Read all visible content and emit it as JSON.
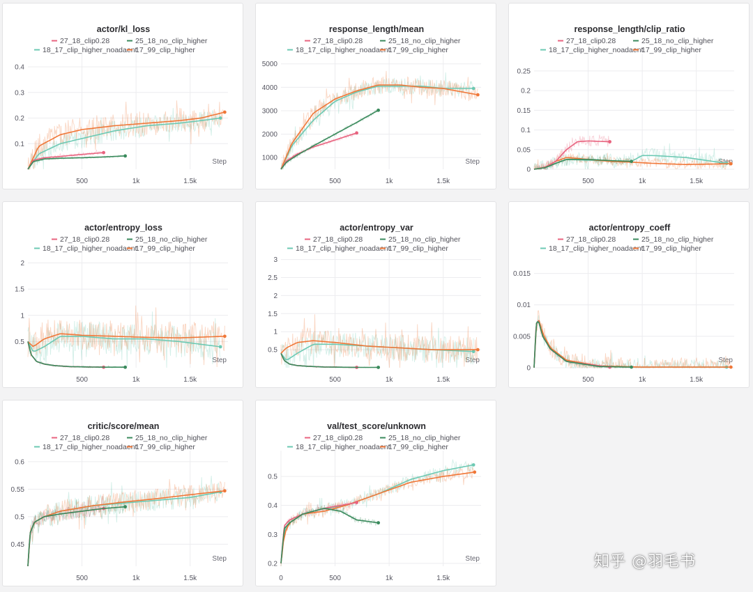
{
  "legend": {
    "series": [
      {
        "name": "27_18_clip0.28",
        "color": "#e8637f"
      },
      {
        "name": "25_18_no_clip_higher",
        "color": "#3a8a5c"
      },
      {
        "name": "18_17_clip_higher_noadaent",
        "color": "#6cc9b3"
      },
      {
        "name": "17_99_clip_higher",
        "color": "#f07738"
      }
    ]
  },
  "step_label": "Step",
  "watermark": "知乎 @羽毛书",
  "chart_data": [
    {
      "type": "line",
      "title": "actor/kl_loss",
      "xlim": [
        0,
        1850
      ],
      "ylim": [
        0,
        0.43
      ],
      "xticks": [
        500,
        1000,
        1500
      ],
      "xtick_labels": [
        "500",
        "1k",
        "1.5k"
      ],
      "yticks": [
        0.1,
        0.2,
        0.3,
        0.4
      ],
      "ytick_labels": [
        "0.1",
        "0.2",
        "0.3",
        "0.4"
      ],
      "noise": [
        0.006,
        0.004,
        0.04,
        0.05
      ],
      "series": [
        {
          "name": "27_18_clip0.28",
          "x": [
            0,
            50,
            150,
            300,
            500,
            700
          ],
          "y": [
            0,
            0.035,
            0.045,
            0.05,
            0.058,
            0.065
          ]
        },
        {
          "name": "25_18_no_clip_higher",
          "x": [
            0,
            50,
            150,
            300,
            500,
            700,
            900
          ],
          "y": [
            0,
            0.03,
            0.04,
            0.043,
            0.045,
            0.048,
            0.052
          ]
        },
        {
          "name": "18_17_clip_higher_noadaent",
          "x": [
            0,
            100,
            300,
            500,
            800,
            1100,
            1400,
            1600,
            1780
          ],
          "y": [
            0,
            0.06,
            0.1,
            0.12,
            0.15,
            0.17,
            0.18,
            0.19,
            0.2
          ]
        },
        {
          "name": "17_99_clip_higher",
          "x": [
            0,
            100,
            300,
            500,
            800,
            1100,
            1400,
            1600,
            1820
          ],
          "y": [
            0,
            0.09,
            0.135,
            0.155,
            0.17,
            0.18,
            0.19,
            0.2,
            0.223
          ]
        }
      ]
    },
    {
      "type": "line",
      "title": "response_length/mean",
      "xlim": [
        0,
        1850
      ],
      "ylim": [
        500,
        5200
      ],
      "xticks": [
        500,
        1000,
        1500
      ],
      "xtick_labels": [
        "500",
        "1k",
        "1.5k"
      ],
      "yticks": [
        1000,
        2000,
        3000,
        4000,
        5000
      ],
      "ytick_labels": [
        "1000",
        "2000",
        "3000",
        "4000",
        "5000"
      ],
      "noise": [
        80,
        70,
        350,
        380
      ],
      "series": [
        {
          "name": "27_18_clip0.28",
          "x": [
            0,
            50,
            150,
            300,
            500,
            700
          ],
          "y": [
            500,
            850,
            1150,
            1450,
            1750,
            2050
          ]
        },
        {
          "name": "25_18_no_clip_higher",
          "x": [
            0,
            50,
            150,
            300,
            500,
            700,
            900
          ],
          "y": [
            500,
            800,
            1100,
            1500,
            2000,
            2500,
            3020
          ]
        },
        {
          "name": "18_17_clip_higher_noadaent",
          "x": [
            0,
            100,
            300,
            500,
            700,
            900,
            1100,
            1300,
            1500,
            1780
          ],
          "y": [
            500,
            1500,
            2600,
            3400,
            3800,
            4050,
            4050,
            4050,
            3950,
            3950
          ]
        },
        {
          "name": "17_99_clip_higher",
          "x": [
            0,
            100,
            300,
            500,
            700,
            900,
            1100,
            1300,
            1500,
            1820
          ],
          "y": [
            500,
            1600,
            2900,
            3500,
            3850,
            4100,
            4100,
            4000,
            3950,
            3680
          ]
        }
      ]
    },
    {
      "type": "line",
      "title": "response_length/clip_ratio",
      "xlim": [
        0,
        1850
      ],
      "ylim": [
        0,
        0.28
      ],
      "xticks": [
        500,
        1000,
        1500
      ],
      "xtick_labels": [
        "500",
        "1k",
        "1.5k"
      ],
      "yticks": [
        0,
        0.05,
        0.1,
        0.15,
        0.2,
        0.25
      ],
      "ytick_labels": [
        "0",
        "0.05",
        "0.1",
        "0.15",
        "0.2",
        "0.25"
      ],
      "noise": [
        0.015,
        0.008,
        0.018,
        0.012
      ],
      "series": [
        {
          "name": "27_18_clip0.28",
          "x": [
            0,
            100,
            200,
            300,
            400,
            500,
            700
          ],
          "y": [
            0,
            0.005,
            0.02,
            0.05,
            0.07,
            0.072,
            0.07
          ]
        },
        {
          "name": "25_18_no_clip_higher",
          "x": [
            0,
            100,
            200,
            300,
            500,
            700,
            900
          ],
          "y": [
            0,
            0.004,
            0.015,
            0.025,
            0.025,
            0.022,
            0.02
          ]
        },
        {
          "name": "18_17_clip_higher_noadaent",
          "x": [
            0,
            100,
            200,
            300,
            600,
            900,
            1000,
            1100,
            1400,
            1780
          ],
          "y": [
            0,
            0.004,
            0.015,
            0.025,
            0.022,
            0.02,
            0.035,
            0.035,
            0.03,
            0.015
          ]
        },
        {
          "name": "17_99_clip_higher",
          "x": [
            0,
            100,
            200,
            300,
            500,
            700,
            900,
            1100,
            1400,
            1820
          ],
          "y": [
            0,
            0.005,
            0.02,
            0.03,
            0.025,
            0.02,
            0.018,
            0.015,
            0.012,
            0.014
          ]
        }
      ]
    },
    {
      "type": "line",
      "title": "actor/entropy_loss",
      "xlim": [
        0,
        1850
      ],
      "ylim": [
        0,
        2.1
      ],
      "xticks": [
        500,
        1000,
        1500
      ],
      "xtick_labels": [
        "500",
        "1k",
        "1.5k"
      ],
      "yticks": [
        0.5,
        1,
        1.5,
        2
      ],
      "ytick_labels": [
        "0.5",
        "1",
        "1.5",
        "2"
      ],
      "noise": [
        0.015,
        0.015,
        0.3,
        0.3
      ],
      "series": [
        {
          "name": "27_18_clip0.28",
          "x": [
            0,
            30,
            80,
            150,
            250,
            400,
            700
          ],
          "y": [
            0.5,
            0.25,
            0.12,
            0.07,
            0.04,
            0.02,
            0.01
          ]
        },
        {
          "name": "25_18_no_clip_higher",
          "x": [
            0,
            30,
            80,
            150,
            250,
            400,
            700,
            900
          ],
          "y": [
            0.5,
            0.25,
            0.12,
            0.07,
            0.04,
            0.02,
            0.01,
            0.01
          ]
        },
        {
          "name": "18_17_clip_higher_noadaent",
          "x": [
            0,
            50,
            150,
            300,
            500,
            800,
            1100,
            1400,
            1780
          ],
          "y": [
            0.5,
            0.3,
            0.4,
            0.6,
            0.6,
            0.55,
            0.55,
            0.5,
            0.4
          ]
        },
        {
          "name": "17_99_clip_higher",
          "x": [
            0,
            50,
            150,
            300,
            500,
            800,
            1100,
            1400,
            1820
          ],
          "y": [
            0.5,
            0.4,
            0.55,
            0.65,
            0.62,
            0.6,
            0.58,
            0.57,
            0.6
          ]
        }
      ]
    },
    {
      "type": "line",
      "title": "actor/entropy_var",
      "xlim": [
        0,
        1850
      ],
      "ylim": [
        0,
        3.05
      ],
      "xticks": [
        500,
        1000,
        1500
      ],
      "xtick_labels": [
        "500",
        "1k",
        "1.5k"
      ],
      "yticks": [
        0.5,
        1,
        1.5,
        2,
        2.5,
        3
      ],
      "ytick_labels": [
        "0.5",
        "1",
        "1.5",
        "2",
        "2.5",
        "3"
      ],
      "noise": [
        0.015,
        0.015,
        0.38,
        0.38
      ],
      "series": [
        {
          "name": "27_18_clip0.28",
          "x": [
            0,
            30,
            80,
            150,
            250,
            400,
            700
          ],
          "y": [
            0.4,
            0.2,
            0.1,
            0.06,
            0.04,
            0.02,
            0.01
          ]
        },
        {
          "name": "25_18_no_clip_higher",
          "x": [
            0,
            30,
            80,
            150,
            250,
            400,
            700,
            900
          ],
          "y": [
            0.4,
            0.2,
            0.1,
            0.06,
            0.04,
            0.02,
            0.01,
            0.01
          ]
        },
        {
          "name": "18_17_clip_higher_noadaent",
          "x": [
            0,
            50,
            150,
            300,
            500,
            800,
            1100,
            1400,
            1780
          ],
          "y": [
            0.4,
            0.2,
            0.4,
            0.65,
            0.65,
            0.6,
            0.55,
            0.5,
            0.45
          ]
        },
        {
          "name": "17_99_clip_higher",
          "x": [
            0,
            50,
            150,
            300,
            500,
            800,
            1100,
            1400,
            1820
          ],
          "y": [
            0.4,
            0.55,
            0.7,
            0.75,
            0.7,
            0.6,
            0.55,
            0.5,
            0.5
          ]
        }
      ]
    },
    {
      "type": "line",
      "title": "actor/entropy_coeff",
      "xlim": [
        0,
        1850
      ],
      "ylim": [
        0,
        0.0175
      ],
      "xticks": [
        500,
        1000,
        1500
      ],
      "xtick_labels": [
        "500",
        "1k",
        "1.5k"
      ],
      "yticks": [
        0,
        0.005,
        0.01,
        0.015
      ],
      "ytick_labels": [
        "0",
        "0.005",
        "0.01",
        "0.015"
      ],
      "noise": [
        0.0003,
        0.0003,
        0.0012,
        0.0015
      ],
      "series": [
        {
          "name": "27_18_clip0.28",
          "x": [
            0,
            20,
            40,
            80,
            150,
            300,
            700
          ],
          "y": [
            0.0,
            0.007,
            0.0075,
            0.005,
            0.003,
            0.001,
            0.0001
          ]
        },
        {
          "name": "25_18_no_clip_higher",
          "x": [
            0,
            20,
            40,
            80,
            150,
            300,
            600,
            900
          ],
          "y": [
            0.0,
            0.007,
            0.0075,
            0.005,
            0.003,
            0.001,
            0.0002,
            0.0001
          ]
        },
        {
          "name": "18_17_clip_higher_noadaent",
          "x": [
            0,
            20,
            40,
            80,
            150,
            300,
            600,
            1000,
            1780
          ],
          "y": [
            0.0,
            0.007,
            0.0075,
            0.005,
            0.003,
            0.001,
            0.0002,
            0.0001,
            0.0001
          ]
        },
        {
          "name": "17_99_clip_higher",
          "x": [
            0,
            20,
            40,
            80,
            150,
            300,
            600,
            1000,
            1820
          ],
          "y": [
            0.0,
            0.007,
            0.0078,
            0.0055,
            0.0032,
            0.0012,
            0.0003,
            0.0001,
            0.0001
          ]
        }
      ]
    },
    {
      "type": "line",
      "title": "critic/score/mean",
      "xlim": [
        0,
        1850
      ],
      "ylim": [
        0.41,
        0.61
      ],
      "xticks": [
        500,
        1000,
        1500
      ],
      "xtick_labels": [
        "500",
        "1k",
        "1.5k"
      ],
      "yticks": [
        0.45,
        0.5,
        0.55,
        0.6
      ],
      "ytick_labels": [
        "0.45",
        "0.5",
        "0.55",
        "0.6"
      ],
      "noise": [
        0.012,
        0.012,
        0.02,
        0.02
      ],
      "series": [
        {
          "name": "27_18_clip0.28",
          "x": [
            0,
            20,
            60,
            150,
            300,
            500,
            700
          ],
          "y": [
            0.41,
            0.47,
            0.49,
            0.5,
            0.505,
            0.51,
            0.515
          ]
        },
        {
          "name": "25_18_no_clip_higher",
          "x": [
            0,
            20,
            60,
            150,
            300,
            500,
            700,
            900
          ],
          "y": [
            0.41,
            0.47,
            0.49,
            0.5,
            0.505,
            0.51,
            0.515,
            0.518
          ]
        },
        {
          "name": "18_17_clip_higher_noadaent",
          "x": [
            0,
            20,
            60,
            150,
            300,
            600,
            900,
            1200,
            1500,
            1780
          ],
          "y": [
            0.41,
            0.47,
            0.49,
            0.5,
            0.51,
            0.52,
            0.525,
            0.53,
            0.535,
            0.545
          ]
        },
        {
          "name": "17_99_clip_higher",
          "x": [
            0,
            20,
            60,
            150,
            300,
            600,
            900,
            1200,
            1500,
            1820
          ],
          "y": [
            0.41,
            0.47,
            0.49,
            0.5,
            0.51,
            0.52,
            0.527,
            0.533,
            0.54,
            0.547
          ]
        }
      ]
    },
    {
      "type": "line",
      "title": "val/test_score/unknown",
      "xlim": [
        0,
        1850
      ],
      "ylim": [
        0.19,
        0.57
      ],
      "xticks": [
        0,
        500,
        1000,
        1500
      ],
      "xtick_labels": [
        "0",
        "500",
        "1k",
        "1.5k"
      ],
      "yticks": [
        0.2,
        0.3,
        0.4,
        0.5
      ],
      "ytick_labels": [
        "0.2",
        "0.3",
        "0.4",
        "0.5"
      ],
      "noise": [
        0.01,
        0.01,
        0.02,
        0.02
      ],
      "series": [
        {
          "name": "27_18_clip0.28",
          "x": [
            0,
            30,
            80,
            200,
            400,
            550,
            700
          ],
          "y": [
            0.2,
            0.33,
            0.35,
            0.37,
            0.39,
            0.4,
            0.41
          ]
        },
        {
          "name": "25_18_no_clip_higher",
          "x": [
            0,
            30,
            80,
            200,
            400,
            550,
            700,
            900
          ],
          "y": [
            0.2,
            0.32,
            0.34,
            0.37,
            0.39,
            0.38,
            0.35,
            0.34
          ]
        },
        {
          "name": "18_17_clip_higher_noadaent",
          "x": [
            0,
            30,
            80,
            200,
            400,
            600,
            900,
            1200,
            1500,
            1780
          ],
          "y": [
            0.2,
            0.31,
            0.34,
            0.37,
            0.39,
            0.4,
            0.44,
            0.49,
            0.52,
            0.54
          ]
        },
        {
          "name": "17_99_clip_higher",
          "x": [
            0,
            30,
            80,
            200,
            400,
            600,
            900,
            1200,
            1500,
            1790
          ],
          "y": [
            0.2,
            0.3,
            0.34,
            0.37,
            0.38,
            0.4,
            0.44,
            0.48,
            0.5,
            0.515
          ]
        }
      ]
    }
  ]
}
